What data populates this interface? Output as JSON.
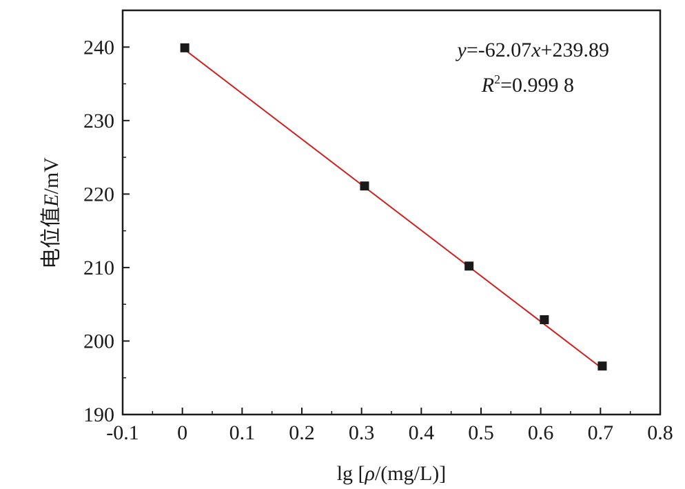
{
  "chart_data": {
    "type": "scatter",
    "x_label": {
      "prefix": "lg [",
      "symbol": "ρ",
      "suffix": "/(mg/L)]"
    },
    "y_label": {
      "prefix": "电位值",
      "symbol": "E",
      "suffix": "/mV"
    },
    "xlim": [
      -0.1,
      0.8
    ],
    "ylim": [
      190,
      245
    ],
    "x_ticks": [
      -0.1,
      0,
      0.1,
      0.2,
      0.3,
      0.4,
      0.5,
      0.6,
      0.7,
      0.8
    ],
    "x_tick_labels": [
      "-0.1",
      "0",
      "0.1",
      "0.2",
      "0.3",
      "0.4",
      "0.5",
      "0.6",
      "0.7",
      "0.8"
    ],
    "y_ticks": [
      190,
      200,
      210,
      220,
      230,
      240
    ],
    "y_tick_labels": [
      "190",
      "200",
      "210",
      "220",
      "230",
      "240"
    ],
    "grid": false,
    "series": [
      {
        "marker": "square",
        "color": "#1a1a1a",
        "x": [
          0.004,
          0.305,
          0.48,
          0.606,
          0.703
        ],
        "y": [
          239.9,
          221.1,
          210.2,
          202.9,
          196.6
        ]
      }
    ],
    "fit_line": {
      "color": "#d0201e",
      "slope": -62.07,
      "intercept": 239.89,
      "x_range": [
        0.004,
        0.703
      ]
    },
    "annotations": {
      "equation": {
        "y_var": "y",
        "middle": "=-62.07",
        "x_var": "x",
        "rest": "+239.89"
      },
      "r2": {
        "var": "R",
        "sup": "2",
        "rest": "=0.999 8"
      }
    }
  }
}
